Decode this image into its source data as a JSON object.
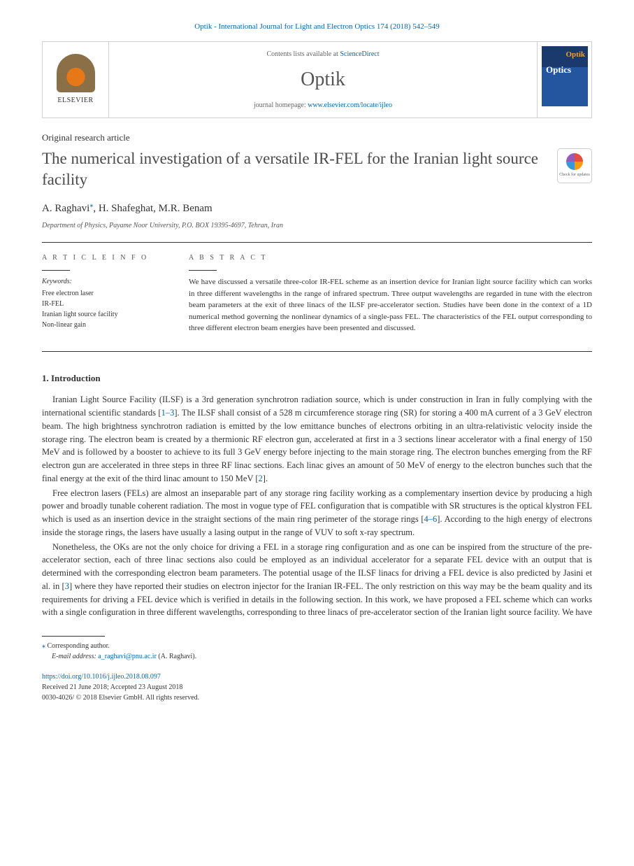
{
  "citation": "Optik - International Journal for Light and Electron Optics 174 (2018) 542–549",
  "header": {
    "elsevier": "ELSEVIER",
    "contents_prefix": "Contents lists available at ",
    "contents_link": "ScienceDirect",
    "journal": "Optik",
    "homepage_prefix": "journal homepage: ",
    "homepage_url": "www.elsevier.com/locate/ijleo",
    "cover_optik": "Optik",
    "cover_optics": "Optics"
  },
  "article": {
    "type": "Original research article",
    "title": "The numerical investigation of a versatile IR-FEL for the Iranian light source facility",
    "check_updates": "Check for updates",
    "authors_html": "A. Raghavi",
    "authors_rest": ", H. Shafeghat, M.R. Benam",
    "corr_mark": "⁎",
    "affiliation": "Department of Physics, Payame Noor University, P.O. BOX 19395-4697, Tehran, Iran"
  },
  "info": {
    "header": "A R T I C L E  I N F O",
    "keywords_label": "Keywords:",
    "keywords": "Free electron laser\nIR-FEL\nIranian light source facility\nNon-linear gain"
  },
  "abstract": {
    "header": "A B S T R A C T",
    "text": "We have discussed a versatile three-color IR-FEL scheme as an insertion device for Iranian light source facility which can works in three different wavelengths in the range of infrared spectrum. Three output wavelengths are regarded in tune with the electron beam parameters at the exit of three linacs of the ILSF pre-accelerator section. Studies have been done in the context of a 1D numerical method governing the nonlinear dynamics of a single-pass FEL. The characteristics of the FEL output corresponding to three different electron beam energies have been presented and discussed."
  },
  "section1": {
    "heading": "1.  Introduction",
    "p1_a": "Iranian Light Source Facility (ILSF) is a 3rd generation synchrotron radiation source, which is under construction in Iran in fully complying with the international scientific standards [",
    "p1_cite1": "1–3",
    "p1_b": "]. The ILSF shall consist of a 528 m circumference storage ring (SR) for storing a 400 mA current of a 3 GeV electron beam. The high brightness synchrotron radiation is emitted by the low emittance bunches of electrons orbiting in an ultra-relativistic velocity inside the storage ring. The electron beam is created by a thermionic RF electron gun, accelerated at first in a 3 sections linear accelerator with a final energy of 150 MeV and is followed by a booster to achieve to its full 3 GeV energy before injecting to the main storage ring. The electron bunches emerging from the RF electron gun are accelerated in three steps in three RF linac sections. Each linac gives an amount of 50 MeV of energy to the electron bunches such that the final energy at the exit of the third linac amount to 150 MeV [",
    "p1_cite2": "2",
    "p1_c": "].",
    "p2_a": "Free electron lasers (FELs) are almost an inseparable part of any storage ring facility working as a complementary insertion device by producing a high power and broadly tunable coherent radiation. The most in vogue type of FEL configuration that is compatible with SR structures is the optical klystron FEL which is used as an insertion device in the straight sections of the main ring perimeter of the storage rings [",
    "p2_cite1": "4–6",
    "p2_b": "]. According to the high energy of electrons inside the storage rings, the lasers have usually a lasing output in the range of VUV to soft x-ray spectrum.",
    "p3_a": "Nonetheless, the OKs are not the only choice for driving a FEL in a storage ring configuration and as one can be inspired from the structure of the pre-accelerator section, each of three linac sections also could be employed as an individual accelerator for a separate FEL device with an output that is determined with the corresponding electron beam parameters. The potential usage of the ILSF linacs for driving a FEL device is also predicted by Jasini et al. in [",
    "p3_cite1": "3",
    "p3_b": "] where they have reported their studies on electron injector for the Iranian IR-FEL. The only restriction on this way may be the beam quality and its requirements for driving a FEL device which is verified in details in the following section. In this work, we have proposed a FEL scheme which can works with a single configuration in three different wavelengths, corresponding to three linacs of pre-accelerator section of the Iranian light source facility. We have"
  },
  "footer": {
    "corr": "Corresponding author.",
    "email_label": "E-mail address: ",
    "email": "a_raghavi@pnu.ac.ir",
    "email_suffix": " (A. Raghavi).",
    "doi": "https://doi.org/10.1016/j.ijleo.2018.08.097",
    "received": "Received 21 June 2018; Accepted 23 August 2018",
    "copyright": "0030-4026/ © 2018 Elsevier GmbH. All rights reserved."
  }
}
